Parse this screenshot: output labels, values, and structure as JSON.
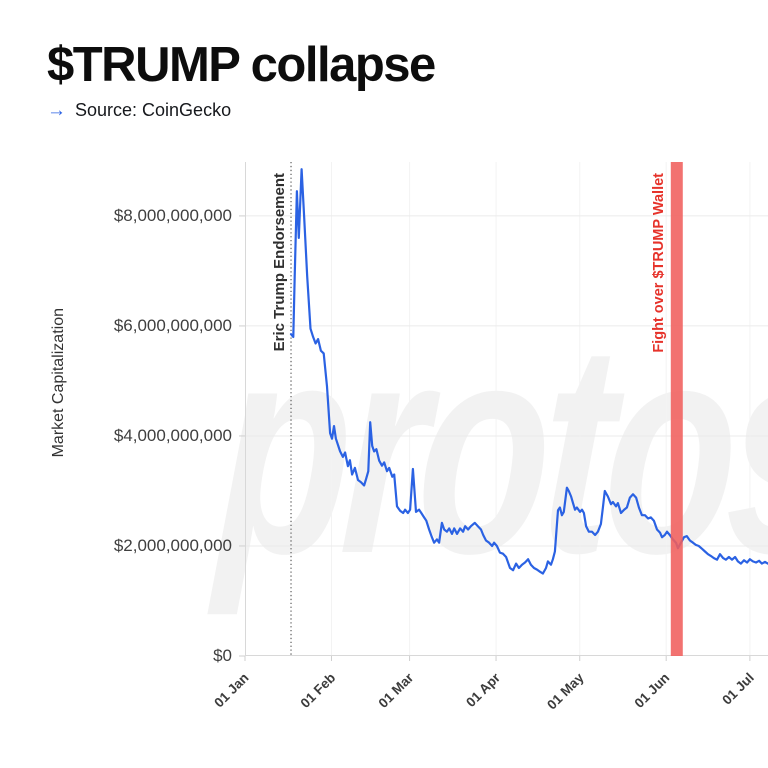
{
  "header": {
    "title": "$TRUMP collapse",
    "source_arrow": "→",
    "source_label": "Source: CoinGecko",
    "accent_color": "#2b62e3"
  },
  "watermark": {
    "text": "protos"
  },
  "chart_data": {
    "type": "line",
    "title": "$TRUMP collapse",
    "source": "CoinGecko",
    "xlabel": "",
    "ylabel": "Market Capitalization",
    "x_unit": "days since 01 Jan 2025",
    "x_range": [
      0,
      187.5
    ],
    "y_range": [
      0,
      8980000000
    ],
    "grid": true,
    "legend": "none",
    "line_color": "#2b62e3",
    "grid_color": "#ebebeb",
    "vgrid_color": "#f3f3f3",
    "axis_color": "#d8d8d8",
    "tick_color": "#cfcfcf",
    "x_ticks": [
      {
        "day": 0,
        "label": "01 Jan"
      },
      {
        "day": 31,
        "label": "01 Feb"
      },
      {
        "day": 59,
        "label": "01 Mar"
      },
      {
        "day": 90,
        "label": "01 Apr"
      },
      {
        "day": 120,
        "label": "01 May"
      },
      {
        "day": 151,
        "label": "01 Jun"
      },
      {
        "day": 181,
        "label": "01 Jul"
      }
    ],
    "y_ticks": [
      {
        "value": 0,
        "label": "$0"
      },
      {
        "value": 2000000000,
        "label": "$2,000,000,000"
      },
      {
        "value": 4000000000,
        "label": "$4,000,000,000"
      },
      {
        "value": 6000000000,
        "label": "$6,000,000,000"
      },
      {
        "value": 8000000000,
        "label": "$8,000,000,000"
      }
    ],
    "annotations": [
      {
        "type": "vline",
        "day": 16.5,
        "style": "dotted",
        "color": "#6a6a6a",
        "label": "Eric Trump Endorsement",
        "label_color": "#2f2f2f",
        "label_font_px": 15
      },
      {
        "type": "vband",
        "day": 154.8,
        "band_width_days": 4.3,
        "color": "#f05f5c",
        "opacity": 0.88,
        "label": "Fight over $TRUMP Wallet",
        "label_color": "#e6332b",
        "label_font_px": 14.5
      }
    ],
    "series": [
      {
        "name": "$TRUMP Market Capitalization",
        "unit": "USD billions",
        "color": "#2b62e3",
        "points_day_usd_billions": [
          [
            16.5,
            5.85
          ],
          [
            17.3,
            5.8
          ],
          [
            17.8,
            6.9
          ],
          [
            18.6,
            8.45
          ],
          [
            19.3,
            7.6
          ],
          [
            20.3,
            8.85
          ],
          [
            21.2,
            8.0
          ],
          [
            22.3,
            6.9
          ],
          [
            23.5,
            5.95
          ],
          [
            24.4,
            5.8
          ],
          [
            25.3,
            5.68
          ],
          [
            26.2,
            5.76
          ],
          [
            27.2,
            5.55
          ],
          [
            28.2,
            5.5
          ],
          [
            29.4,
            4.9
          ],
          [
            30.5,
            4.05
          ],
          [
            31.2,
            3.95
          ],
          [
            31.9,
            4.18
          ],
          [
            32.6,
            3.95
          ],
          [
            34.1,
            3.72
          ],
          [
            35.1,
            3.62
          ],
          [
            35.9,
            3.7
          ],
          [
            36.9,
            3.45
          ],
          [
            37.6,
            3.56
          ],
          [
            38.4,
            3.3
          ],
          [
            39.4,
            3.42
          ],
          [
            40.5,
            3.2
          ],
          [
            41.6,
            3.16
          ],
          [
            42.7,
            3.1
          ],
          [
            43.4,
            3.22
          ],
          [
            44.2,
            3.36
          ],
          [
            44.9,
            4.25
          ],
          [
            45.6,
            3.82
          ],
          [
            46.3,
            3.72
          ],
          [
            47.1,
            3.76
          ],
          [
            48.1,
            3.55
          ],
          [
            49.1,
            3.46
          ],
          [
            49.9,
            3.52
          ],
          [
            50.9,
            3.36
          ],
          [
            51.7,
            3.42
          ],
          [
            52.8,
            3.26
          ],
          [
            53.5,
            3.3
          ],
          [
            54.5,
            2.72
          ],
          [
            55.6,
            2.64
          ],
          [
            56.7,
            2.6
          ],
          [
            57.4,
            2.66
          ],
          [
            58.4,
            2.6
          ],
          [
            59.2,
            2.66
          ],
          [
            60.2,
            3.4
          ],
          [
            61.3,
            2.62
          ],
          [
            62.4,
            2.66
          ],
          [
            63.2,
            2.6
          ],
          [
            64.2,
            2.52
          ],
          [
            65,
            2.46
          ],
          [
            66,
            2.3
          ],
          [
            67,
            2.16
          ],
          [
            67.8,
            2.06
          ],
          [
            68.8,
            2.12
          ],
          [
            69.6,
            2.06
          ],
          [
            70.6,
            2.42
          ],
          [
            71.4,
            2.3
          ],
          [
            72.4,
            2.26
          ],
          [
            73.2,
            2.32
          ],
          [
            74.2,
            2.22
          ],
          [
            75,
            2.32
          ],
          [
            76,
            2.22
          ],
          [
            77.1,
            2.32
          ],
          [
            78.2,
            2.26
          ],
          [
            78.9,
            2.36
          ],
          [
            80,
            2.3
          ],
          [
            81,
            2.36
          ],
          [
            82.4,
            2.42
          ],
          [
            83.5,
            2.36
          ],
          [
            84.6,
            2.3
          ],
          [
            85.4,
            2.2
          ],
          [
            86.4,
            2.1
          ],
          [
            87.5,
            2.06
          ],
          [
            88.6,
            2.0
          ],
          [
            89.3,
            2.06
          ],
          [
            90.3,
            2.0
          ],
          [
            91.4,
            1.88
          ],
          [
            92.5,
            1.86
          ],
          [
            93.6,
            1.8
          ],
          [
            95,
            1.6
          ],
          [
            96.1,
            1.56
          ],
          [
            97.2,
            1.68
          ],
          [
            98.2,
            1.6
          ],
          [
            99.3,
            1.66
          ],
          [
            100.4,
            1.7
          ],
          [
            101.5,
            1.76
          ],
          [
            102.5,
            1.66
          ],
          [
            103.6,
            1.6
          ],
          [
            104.7,
            1.57
          ],
          [
            105.8,
            1.53
          ],
          [
            106.8,
            1.5
          ],
          [
            107.9,
            1.6
          ],
          [
            108.6,
            1.72
          ],
          [
            109.7,
            1.66
          ],
          [
            110.4,
            1.76
          ],
          [
            111.1,
            1.9
          ],
          [
            112.2,
            2.65
          ],
          [
            112.9,
            2.7
          ],
          [
            113.6,
            2.56
          ],
          [
            114.3,
            2.62
          ],
          [
            115.4,
            3.06
          ],
          [
            116.1,
            3.0
          ],
          [
            116.9,
            2.9
          ],
          [
            117.6,
            2.78
          ],
          [
            118.3,
            2.66
          ],
          [
            119,
            2.7
          ],
          [
            120.1,
            2.62
          ],
          [
            120.8,
            2.66
          ],
          [
            121.5,
            2.6
          ],
          [
            122.3,
            2.36
          ],
          [
            123.3,
            2.26
          ],
          [
            124.4,
            2.26
          ],
          [
            125.5,
            2.2
          ],
          [
            126.5,
            2.26
          ],
          [
            127.6,
            2.4
          ],
          [
            128.3,
            2.7
          ],
          [
            129,
            3.0
          ],
          [
            130.1,
            2.9
          ],
          [
            131.2,
            2.76
          ],
          [
            131.9,
            2.8
          ],
          [
            133,
            2.72
          ],
          [
            133.7,
            2.78
          ],
          [
            134.8,
            2.6
          ],
          [
            135.9,
            2.66
          ],
          [
            136.9,
            2.7
          ],
          [
            138,
            2.88
          ],
          [
            139.1,
            2.94
          ],
          [
            140.2,
            2.88
          ],
          [
            141.2,
            2.7
          ],
          [
            142.3,
            2.56
          ],
          [
            143.4,
            2.56
          ],
          [
            144.5,
            2.5
          ],
          [
            145.5,
            2.52
          ],
          [
            146.6,
            2.46
          ],
          [
            147.7,
            2.3
          ],
          [
            148.8,
            2.24
          ],
          [
            149.5,
            2.16
          ],
          [
            150.5,
            2.2
          ],
          [
            151.3,
            2.26
          ],
          [
            152.3,
            2.2
          ],
          [
            153.4,
            2.12
          ],
          [
            154.5,
            2.06
          ],
          [
            155.2,
            1.96
          ],
          [
            156.3,
            2.06
          ],
          [
            157.4,
            2.16
          ],
          [
            158.4,
            2.18
          ],
          [
            159.5,
            2.1
          ],
          [
            160.6,
            2.06
          ],
          [
            161.6,
            2.02
          ],
          [
            162.7,
            2.0
          ],
          [
            163.8,
            1.95
          ],
          [
            164.9,
            1.9
          ],
          [
            166,
            1.85
          ],
          [
            167,
            1.82
          ],
          [
            168.1,
            1.78
          ],
          [
            169.2,
            1.75
          ],
          [
            170.3,
            1.85
          ],
          [
            171.4,
            1.78
          ],
          [
            172.4,
            1.75
          ],
          [
            173.5,
            1.8
          ],
          [
            174.6,
            1.75
          ],
          [
            175.7,
            1.8
          ],
          [
            176.7,
            1.72
          ],
          [
            177.8,
            1.68
          ],
          [
            178.9,
            1.74
          ],
          [
            180,
            1.7
          ],
          [
            181,
            1.76
          ],
          [
            182.1,
            1.72
          ],
          [
            183.2,
            1.7
          ],
          [
            184.3,
            1.73
          ],
          [
            185.3,
            1.68
          ],
          [
            186.4,
            1.71
          ],
          [
            187.5,
            1.68
          ]
        ]
      }
    ]
  }
}
